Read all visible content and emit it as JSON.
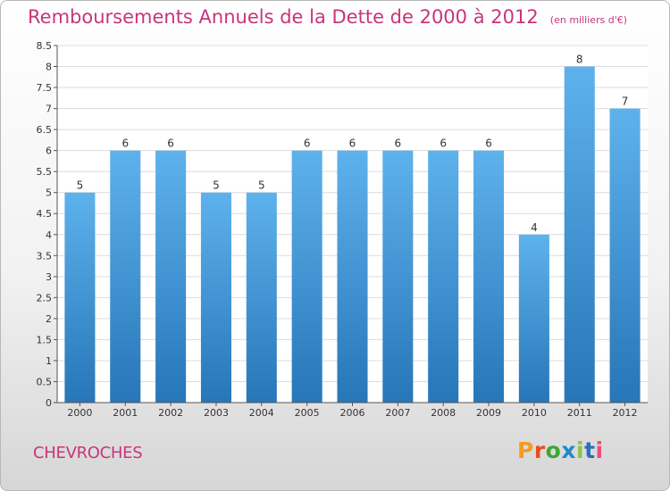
{
  "header": {
    "title": "Remboursements Annuels de la Dette de 2000 à 2012",
    "unit": "(en milliers d'€)"
  },
  "footer": {
    "commune": "CHEVROCHES",
    "logo": [
      "P",
      "r",
      "o",
      "x",
      "i",
      "t",
      "i"
    ]
  },
  "colors": {
    "title": "#c8357c",
    "bar_light": "#5eb2ec",
    "bar_dark": "#2776b8",
    "logo": [
      "#f39c1f",
      "#e84e1b",
      "#3fa535",
      "#1c8ad0",
      "#8bc34a",
      "#2a6fba",
      "#e94e77"
    ]
  },
  "chart_data": {
    "type": "bar",
    "categories": [
      "2000",
      "2001",
      "2002",
      "2003",
      "2004",
      "2005",
      "2006",
      "2007",
      "2008",
      "2009",
      "2010",
      "2011",
      "2012"
    ],
    "values": [
      5,
      6,
      6,
      5,
      5,
      6,
      6,
      6,
      6,
      6,
      4,
      8,
      7
    ],
    "value_labels": [
      "5",
      "6",
      "6",
      "5",
      "5",
      "6",
      "6",
      "6",
      "6",
      "6",
      "4",
      "8",
      "7"
    ],
    "yticks": [
      0,
      0.5,
      1,
      1.5,
      2,
      2.5,
      3,
      3.5,
      4,
      4.5,
      5,
      5.5,
      6,
      6.5,
      7,
      7.5,
      8,
      8.5
    ],
    "ytick_labels": [
      "0",
      "0.5",
      "1",
      "1.5",
      "2",
      "2.5",
      "3",
      "3.5",
      "4",
      "4.5",
      "5",
      "5.5",
      "6",
      "6.5",
      "7",
      "7.5",
      "8",
      "8.5"
    ],
    "ylim": [
      0,
      8.5
    ],
    "grid": true,
    "title": "Remboursements Annuels de la Dette de 2000 à 2012",
    "xlabel": "",
    "ylabel": ""
  }
}
